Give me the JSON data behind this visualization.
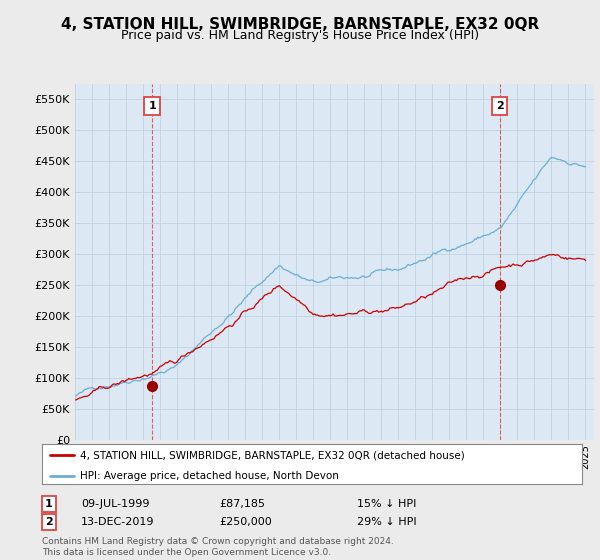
{
  "title": "4, STATION HILL, SWIMBRIDGE, BARNSTAPLE, EX32 0QR",
  "subtitle": "Price paid vs. HM Land Registry's House Price Index (HPI)",
  "ylim": [
    0,
    575000
  ],
  "yticks": [
    0,
    50000,
    100000,
    150000,
    200000,
    250000,
    300000,
    350000,
    400000,
    450000,
    500000,
    550000
  ],
  "hpi_color": "#6baed6",
  "price_color": "#cc0000",
  "marker_color": "#990000",
  "vline_color": "#dd4444",
  "point1_year": 1999.54,
  "point1_val": 87185,
  "point2_year": 2019.96,
  "point2_val": 250000,
  "legend_label_price": "4, STATION HILL, SWIMBRIDGE, BARNSTAPLE, EX32 0QR (detached house)",
  "legend_label_hpi": "HPI: Average price, detached house, North Devon",
  "footnote": "Contains HM Land Registry data © Crown copyright and database right 2024.\nThis data is licensed under the Open Government Licence v3.0.",
  "bg_color": "#ebebeb",
  "plot_bg_color": "#dce9f5",
  "grid_color": "#b8cfe0"
}
